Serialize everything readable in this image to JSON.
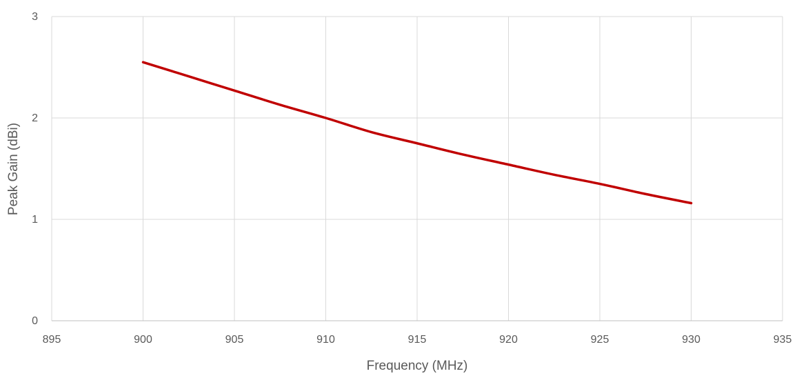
{
  "chart_data": {
    "type": "line",
    "title": "",
    "xlabel": "Frequency (MHz)",
    "ylabel": "Peak Gain (dBi)",
    "xlim": [
      895,
      935
    ],
    "ylim": [
      0,
      3
    ],
    "xticks": [
      895,
      900,
      905,
      910,
      915,
      920,
      925,
      930,
      935
    ],
    "yticks": [
      0,
      1,
      2,
      3
    ],
    "grid": true,
    "legend": "none",
    "series": [
      {
        "color": "#c00000",
        "x": [
          900,
          902.5,
          905,
          907.5,
          910,
          912.5,
          915,
          917.5,
          920,
          922.5,
          925,
          927.5,
          930
        ],
        "y": [
          2.55,
          2.41,
          2.27,
          2.13,
          2.0,
          1.86,
          1.75,
          1.64,
          1.54,
          1.44,
          1.35,
          1.25,
          1.16
        ]
      }
    ]
  }
}
